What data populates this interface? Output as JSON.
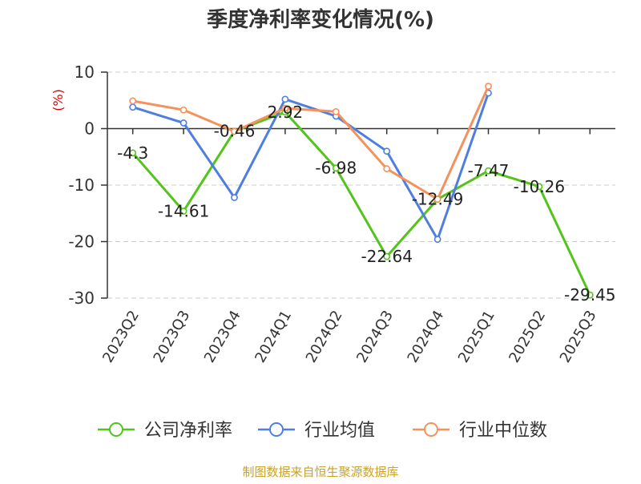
{
  "chart_data": {
    "type": "line",
    "title": "季度净利率变化情况(%)",
    "ylabel": "(%)",
    "ylim": [
      -30,
      10
    ],
    "yticks": [
      10,
      0,
      -10,
      -20,
      -30
    ],
    "categories": [
      "2023Q2",
      "2023Q3",
      "2023Q4",
      "2024Q1",
      "2024Q2",
      "2024Q3",
      "2024Q4",
      "2025Q1",
      "2025Q2",
      "2025Q3"
    ],
    "grid": true,
    "legend_position": "bottom",
    "series": [
      {
        "name": "公司净利率",
        "color": "#52c41a",
        "values": [
          -4.3,
          -14.61,
          -0.46,
          2.92,
          -6.98,
          -22.64,
          -12.49,
          -7.47,
          -10.26,
          -29.45
        ],
        "labels": [
          "-4.3",
          "-14.61",
          "-0.46",
          "2.92",
          "-6.98",
          "-22.64",
          "-12.49",
          "-7.47",
          "-10.26",
          "-29.45"
        ]
      },
      {
        "name": "行业均值",
        "color": "#4e7fe0",
        "values": [
          3.8,
          1.0,
          -12.2,
          5.2,
          2.2,
          -4.0,
          -19.6,
          6.3,
          null,
          null
        ]
      },
      {
        "name": "行业中位数",
        "color": "#f5915c",
        "values": [
          4.9,
          3.3,
          -0.5,
          3.6,
          3.0,
          -7.1,
          -12.5,
          7.5,
          null,
          null
        ]
      }
    ]
  },
  "footer": {
    "source": "制图数据来自恒生聚源数据库"
  }
}
